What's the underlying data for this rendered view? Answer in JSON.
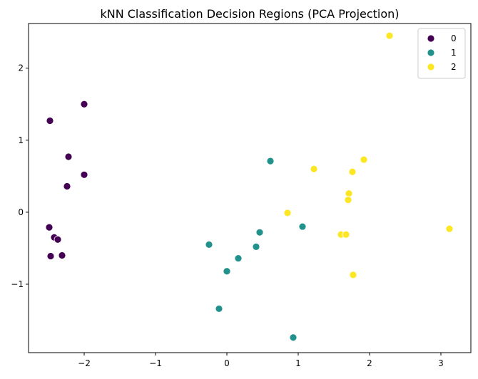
{
  "chart_data": {
    "type": "scatter",
    "title": "kNN Classification Decision Regions (PCA Projection)",
    "xlabel": "",
    "ylabel": "",
    "xlim": [
      -2.78,
      3.42
    ],
    "ylim": [
      -1.95,
      2.62
    ],
    "xticks": [
      -2,
      -1,
      0,
      1,
      2,
      3
    ],
    "xtick_labels": [
      "−2",
      "−1",
      "0",
      "1",
      "2",
      "3"
    ],
    "yticks": [
      -1,
      0,
      1,
      2
    ],
    "ytick_labels": [
      "−1",
      "0",
      "1",
      "2"
    ],
    "grid": false,
    "legend_position": "top-right",
    "series": [
      {
        "name": "0",
        "color": "#440154",
        "points": [
          [
            -2.48,
            1.27
          ],
          [
            -2.0,
            1.5
          ],
          [
            -2.22,
            0.77
          ],
          [
            -2.0,
            0.52
          ],
          [
            -2.24,
            0.36
          ],
          [
            -2.49,
            -0.21
          ],
          [
            -2.42,
            -0.35
          ],
          [
            -2.37,
            -0.38
          ],
          [
            -2.47,
            -0.61
          ],
          [
            -2.31,
            -0.6
          ]
        ]
      },
      {
        "name": "1",
        "color": "#21918c",
        "points": [
          [
            0.61,
            0.71
          ],
          [
            1.06,
            -0.2
          ],
          [
            0.46,
            -0.28
          ],
          [
            -0.25,
            -0.45
          ],
          [
            0.41,
            -0.48
          ],
          [
            0.16,
            -0.64
          ],
          [
            0.0,
            -0.82
          ],
          [
            -0.11,
            -1.34
          ],
          [
            0.93,
            -1.74
          ]
        ]
      },
      {
        "name": "2",
        "color": "#fde725",
        "points": [
          [
            2.28,
            2.45
          ],
          [
            1.22,
            0.6
          ],
          [
            1.76,
            0.56
          ],
          [
            1.92,
            0.73
          ],
          [
            1.71,
            0.26
          ],
          [
            1.7,
            0.17
          ],
          [
            0.85,
            -0.01
          ],
          [
            1.6,
            -0.31
          ],
          [
            1.67,
            -0.31
          ],
          [
            3.12,
            -0.23
          ],
          [
            1.77,
            -0.87
          ]
        ]
      }
    ]
  }
}
